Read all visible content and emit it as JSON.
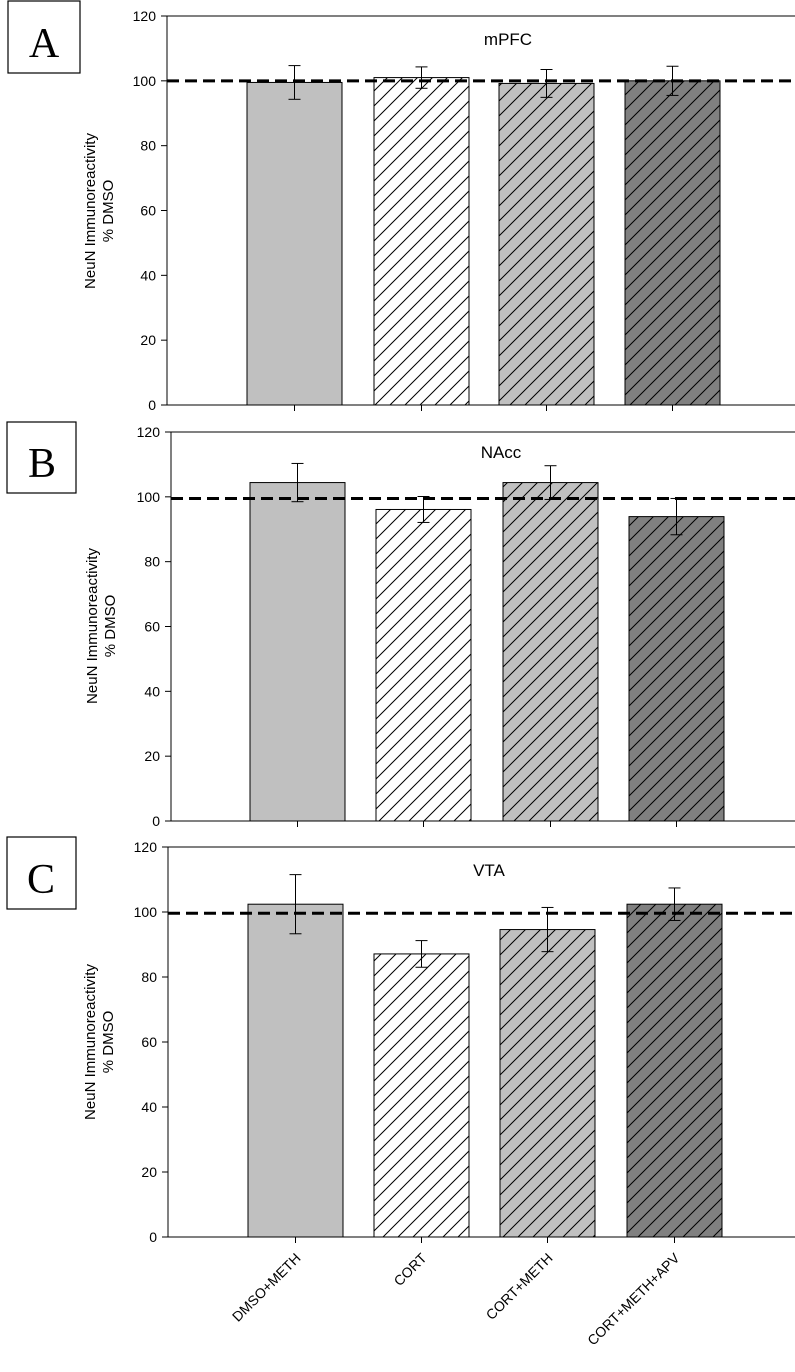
{
  "categories": [
    "DMSO+METH",
    "CORT",
    "CORT+METH",
    "CORT+METH+APV"
  ],
  "bar_styles": [
    {
      "fill": "#c0c0c0",
      "hatch": "none"
    },
    {
      "fill": "#ffffff",
      "hatch": "diagonal"
    },
    {
      "fill": "#c0c0c0",
      "hatch": "diagonal"
    },
    {
      "fill": "#808080",
      "hatch": "diagonal"
    }
  ],
  "chart_data": [
    {
      "type": "bar",
      "panel_label": "A",
      "title": "mPFC",
      "ylabel_line1": "NeuN Immunoreactivity",
      "ylabel_line2": "% DMSO",
      "ylim": [
        0,
        120
      ],
      "yticks": [
        0,
        20,
        40,
        60,
        80,
        100,
        120
      ],
      "categories": [
        "DMSO+METH",
        "CORT",
        "CORT+METH",
        "CORT+METH+APV"
      ],
      "values": [
        99.5,
        101,
        99.2,
        100
      ],
      "errors": [
        5.2,
        3.3,
        4.3,
        4.5
      ],
      "reference_line": 100
    },
    {
      "type": "bar",
      "panel_label": "B",
      "title": "NAcc",
      "ylabel_line1": "NeuN Immunoreactivity",
      "ylabel_line2": "% DMSO",
      "ylim": [
        0,
        120
      ],
      "yticks": [
        0,
        20,
        40,
        60,
        80,
        100,
        120
      ],
      "categories": [
        "DMSO+METH",
        "CORT",
        "CORT+METH",
        "CORT+METH+APV"
      ],
      "values": [
        104.4,
        96.1,
        104.4,
        93.9
      ],
      "errors": [
        5.9,
        4.0,
        5.2,
        5.6
      ],
      "reference_line": 99.5
    },
    {
      "type": "bar",
      "panel_label": "C",
      "title": "VTA",
      "ylabel_line1": "NeuN Immunoreactivity",
      "ylabel_line2": "% DMSO",
      "ylim": [
        0,
        120
      ],
      "yticks": [
        0,
        20,
        40,
        60,
        80,
        100,
        120
      ],
      "categories": [
        "DMSO+METH",
        "CORT",
        "CORT+METH",
        "CORT+METH+APV"
      ],
      "values": [
        102.4,
        87.1,
        94.6,
        102.4
      ],
      "errors": [
        9.1,
        4.1,
        6.8,
        5.0
      ],
      "reference_line": 99.6
    }
  ]
}
